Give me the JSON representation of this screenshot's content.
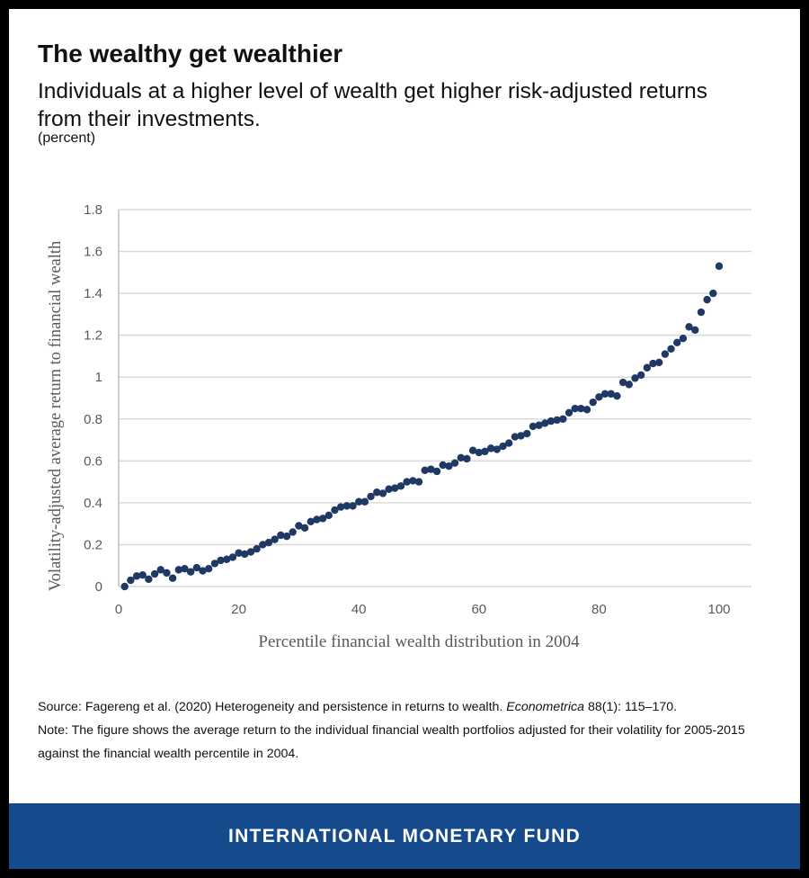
{
  "title": "The wealthy get wealthier",
  "subtitle": "Individuals at a higher level of wealth get higher risk-adjusted returns from their investments.",
  "unit": "(percent)",
  "source_prefix": "Source: Fagereng et al. (2020) Heterogeneity and persistence in returns to wealth. ",
  "source_journal": "Econometrica",
  "source_suffix": " 88(1): 115–170.",
  "note": "Note: The figure shows the average return to the individual financial wealth portfolios adjusted for their volatility for 2005-2015 against the financial wealth percentile in 2004.",
  "footer": "INTERNATIONAL MONETARY FUND",
  "colors": {
    "marker": "#1f3864",
    "footer": "#154b8d",
    "grid": "#d9d9d9"
  },
  "chart_data": {
    "type": "scatter",
    "xlabel": "Percentile financial wealth distribution in 2004",
    "ylabel": "Volatility-adjusted average return to financial wealth",
    "xlim": [
      0,
      100
    ],
    "ylim": [
      0,
      1.8
    ],
    "xticks": [
      "0",
      "20",
      "40",
      "60",
      "80",
      "100"
    ],
    "yticks": [
      "0",
      "0.2",
      "0.4",
      "0.6",
      "0.8",
      "1",
      "1.2",
      "1.4",
      "1.6",
      "1.8"
    ],
    "grid": "horizontal",
    "x": [
      1,
      2,
      3,
      4,
      5,
      6,
      7,
      8,
      9,
      10,
      11,
      12,
      13,
      14,
      15,
      16,
      17,
      18,
      19,
      20,
      21,
      22,
      23,
      24,
      25,
      26,
      27,
      28,
      29,
      30,
      31,
      32,
      33,
      34,
      35,
      36,
      37,
      38,
      39,
      40,
      41,
      42,
      43,
      44,
      45,
      46,
      47,
      48,
      49,
      50,
      51,
      52,
      53,
      54,
      55,
      56,
      57,
      58,
      59,
      60,
      61,
      62,
      63,
      64,
      65,
      66,
      67,
      68,
      69,
      70,
      71,
      72,
      73,
      74,
      75,
      76,
      77,
      78,
      79,
      80,
      81,
      82,
      83,
      84,
      85,
      86,
      87,
      88,
      89,
      90,
      91,
      92,
      93,
      94,
      95,
      96,
      97,
      98,
      99,
      100
    ],
    "y": [
      0.0,
      0.03,
      0.05,
      0.055,
      0.035,
      0.06,
      0.08,
      0.065,
      0.04,
      0.08,
      0.085,
      0.07,
      0.09,
      0.075,
      0.085,
      0.11,
      0.125,
      0.13,
      0.14,
      0.16,
      0.155,
      0.165,
      0.18,
      0.2,
      0.21,
      0.225,
      0.245,
      0.24,
      0.26,
      0.29,
      0.28,
      0.31,
      0.32,
      0.325,
      0.34,
      0.365,
      0.38,
      0.385,
      0.385,
      0.405,
      0.405,
      0.43,
      0.45,
      0.445,
      0.465,
      0.47,
      0.48,
      0.5,
      0.505,
      0.5,
      0.555,
      0.56,
      0.55,
      0.58,
      0.575,
      0.59,
      0.615,
      0.61,
      0.65,
      0.64,
      0.645,
      0.66,
      0.655,
      0.67,
      0.685,
      0.715,
      0.72,
      0.73,
      0.765,
      0.77,
      0.78,
      0.79,
      0.795,
      0.8,
      0.83,
      0.85,
      0.85,
      0.845,
      0.88,
      0.905,
      0.92,
      0.92,
      0.91,
      0.975,
      0.965,
      0.995,
      1.01,
      1.045,
      1.065,
      1.07,
      1.11,
      1.135,
      1.165,
      1.185,
      1.24,
      1.225,
      1.31,
      1.37,
      1.4,
      1.53
    ]
  }
}
